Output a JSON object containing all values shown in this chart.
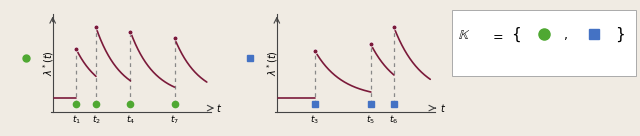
{
  "bg_color": "#f0ebe3",
  "line_color": "#7b1a3a",
  "axis_color": "#444444",
  "dashed_color": "#888888",
  "green_color": "#4fa832",
  "blue_color": "#4472c4",
  "marker_color": "#7b1a3a",
  "panel1": {
    "events": [
      0.15,
      0.285,
      0.52,
      0.82
    ],
    "event_labels": [
      "t_1",
      "t_2",
      "t_4",
      "t_7"
    ],
    "mu": 0.07,
    "alpha": 0.55,
    "beta": 6.0
  },
  "panel2": {
    "events": [
      0.22,
      0.56,
      0.7
    ],
    "event_labels": [
      "t_3",
      "t_5",
      "t_6"
    ],
    "mu": 0.07,
    "alpha": 0.55,
    "beta": 6.0
  }
}
